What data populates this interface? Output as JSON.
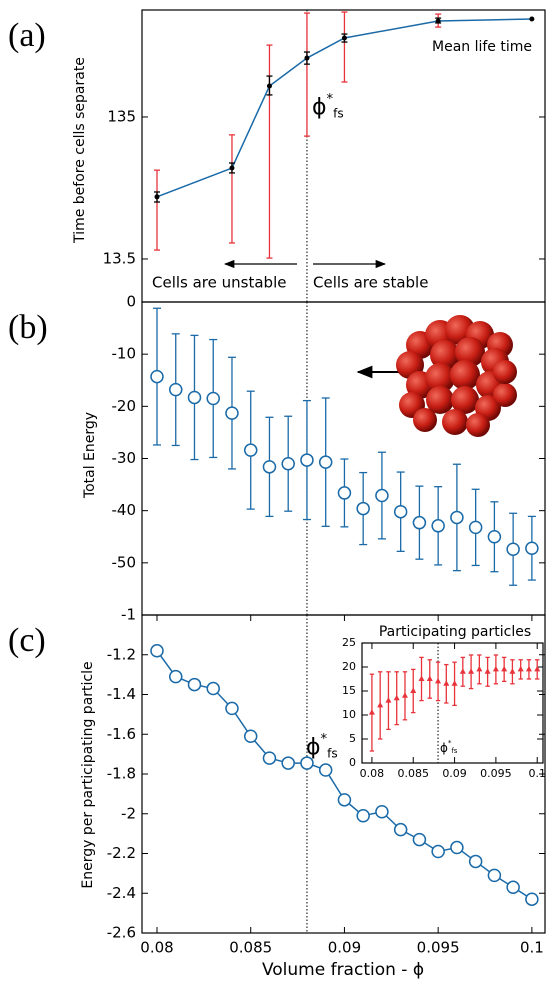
{
  "phi_fs": 0.088,
  "phi_label": {
    "symbol": "ϕ",
    "sup": "*",
    "sub": "fs"
  },
  "xlabel": "Volume fraction - ϕ",
  "chart_data": [
    {
      "type": "line",
      "panel_label": "(a)",
      "ylabel": "Time before cells separate",
      "log_y": true,
      "xlim": [
        0.0792,
        0.1007
      ],
      "ylim": [
        6.72,
        765
      ],
      "yticks": [
        13.5,
        135
      ],
      "x": [
        0.08,
        0.084,
        0.086,
        0.088,
        0.09,
        0.095,
        0.1
      ],
      "series": [
        {
          "color": "#1a6aa8",
          "marker_color": "#000000",
          "range_color": "#e8333a",
          "values": [
            37,
            59,
            223,
            351,
            486,
            640,
            661
          ],
          "range_low": [
            15.6,
            17.5,
            13.7,
            99,
            238,
            580,
            null
          ],
          "range_high": [
            57,
            101,
            433,
            728,
            740,
            716,
            null
          ],
          "err_low": [
            34,
            54.5,
            193,
            318,
            455,
            620,
            null
          ],
          "err_high": [
            40,
            64,
            262,
            387,
            518,
            671,
            null
          ]
        }
      ],
      "annotations": {
        "mean": "Mean life time",
        "unstable": "Cells are unstable",
        "stable": "Cells are stable"
      }
    },
    {
      "type": "errorbar",
      "panel_label": "(b)",
      "ylabel": "Total Energy",
      "marker": "circle",
      "xlim": [
        0.0792,
        0.1007
      ],
      "ylim": [
        -60,
        0
      ],
      "yticks": [
        0,
        -10,
        -20,
        -30,
        -40,
        -50
      ],
      "x": [
        0.08,
        0.081,
        0.082,
        0.083,
        0.084,
        0.085,
        0.086,
        0.087,
        0.088,
        0.089,
        0.09,
        0.091,
        0.092,
        0.093,
        0.094,
        0.095,
        0.096,
        0.097,
        0.098,
        0.099,
        0.1
      ],
      "series": [
        {
          "color": "#1a6aa8",
          "values": [
            -14.3,
            -16.8,
            -18.3,
            -18.5,
            -21.3,
            -28.4,
            -31.6,
            -31,
            -30.3,
            -30.7,
            -36.6,
            -39.6,
            -37.1,
            -40.2,
            -42.3,
            -42.9,
            -41.3,
            -43.2,
            -45,
            -47.4,
            -47.2
          ],
          "errors": [
            13.1,
            10.7,
            11.9,
            11.3,
            10.7,
            11.3,
            9.5,
            9.1,
            11.4,
            12.3,
            6.5,
            6.9,
            8.3,
            7.6,
            7.0,
            7.5,
            10.2,
            7.3,
            6.7,
            6.9,
            6.1
          ]
        }
      ]
    },
    {
      "type": "line",
      "panel_label": "(c)",
      "ylabel": "Energy per participating particle",
      "marker": "circle",
      "xlim": [
        0.0792,
        0.1007
      ],
      "ylim": [
        -2.6,
        -1
      ],
      "yticks": [
        -1,
        -1.2,
        -1.4,
        -1.6,
        -1.8,
        -2,
        -2.2,
        -2.4,
        -2.6
      ],
      "xticks": [
        0.08,
        0.085,
        0.09,
        0.095,
        0.1
      ],
      "x": [
        0.08,
        0.081,
        0.082,
        0.083,
        0.084,
        0.085,
        0.086,
        0.087,
        0.088,
        0.089,
        0.09,
        0.091,
        0.092,
        0.093,
        0.094,
        0.095,
        0.096,
        0.097,
        0.098,
        0.099,
        0.1
      ],
      "series": [
        {
          "color": "#1a6aa8",
          "values": [
            -1.18,
            -1.31,
            -1.35,
            -1.37,
            -1.47,
            -1.61,
            -1.72,
            -1.745,
            -1.745,
            -1.78,
            -1.93,
            -2.01,
            -1.99,
            -2.08,
            -2.13,
            -2.19,
            -2.17,
            -2.24,
            -2.31,
            -2.37,
            -2.43
          ]
        }
      ]
    },
    {
      "type": "errorbar",
      "title": "Participating particles",
      "marker": "triangle",
      "xlim": [
        0.0788,
        0.1007
      ],
      "ylim": [
        0,
        25
      ],
      "yticks": [
        0,
        5,
        10,
        15,
        20,
        25
      ],
      "xticks": [
        0.08,
        0.085,
        0.09,
        0.095,
        0.1
      ],
      "x": [
        0.08,
        0.081,
        0.082,
        0.083,
        0.084,
        0.085,
        0.086,
        0.087,
        0.088,
        0.089,
        0.09,
        0.091,
        0.092,
        0.093,
        0.094,
        0.095,
        0.096,
        0.097,
        0.098,
        0.099,
        0.1
      ],
      "series": [
        {
          "color": "#e8333a",
          "values": [
            10.5,
            12,
            13,
            13.5,
            14,
            15,
            17.5,
            17.5,
            17,
            16.5,
            16.5,
            19,
            19,
            19.5,
            19,
            19.5,
            19.5,
            19,
            19.5,
            19.5,
            19.5
          ],
          "errors": [
            8,
            7,
            6,
            5.5,
            5,
            4.5,
            4.5,
            4,
            4,
            4,
            4.5,
            3,
            3.5,
            3,
            3,
            3,
            2.5,
            2.5,
            2,
            2,
            2
          ]
        }
      ]
    }
  ]
}
